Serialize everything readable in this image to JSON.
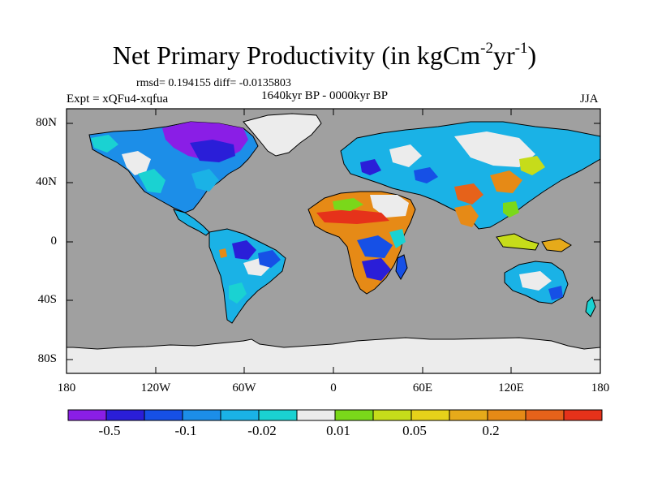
{
  "title": {
    "main": "Net Primary Productivity (in kgCm",
    "exp1": "-2",
    "mid": "yr",
    "exp2": "-1",
    "end": ")"
  },
  "stats": {
    "text": "rmsd= 0.194155  diff= -0.0135803"
  },
  "experiment": {
    "text": "Expt = xQFu4-xqfua"
  },
  "period": {
    "text": "1640kyr BP - 0000kyr BP"
  },
  "season": {
    "text": "JJA"
  },
  "axes": {
    "lat_labels": [
      "80N",
      "40N",
      "0",
      "40S",
      "80S"
    ],
    "lon_labels": [
      "180",
      "120W",
      "60W",
      "0",
      "60E",
      "120E",
      "180"
    ]
  },
  "colorbar": {
    "colors": [
      "#8a1ee6",
      "#2a1ed8",
      "#1650e6",
      "#1c8ee8",
      "#1ab2e6",
      "#1ad2d2",
      "#ececec",
      "#7ad81a",
      "#c6dc1a",
      "#e6d21a",
      "#e6aa1a",
      "#e68a16",
      "#e6621a",
      "#e6321a"
    ],
    "labels": [
      "-0.5",
      "-0.1",
      "-0.02",
      "0.01",
      "0.05",
      "0.2"
    ]
  },
  "map": {
    "ocean_color": "#a0a0a0",
    "ice_color": "#ececec"
  }
}
